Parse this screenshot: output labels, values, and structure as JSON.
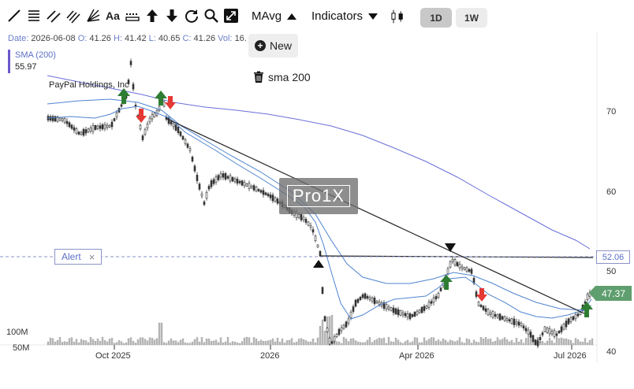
{
  "toolbar": {
    "text_tool_label": "Aa",
    "ma_label": "MAvg",
    "indicators_label": "Indicators",
    "period_1d": "1D",
    "period_1w": "1W"
  },
  "info": {
    "date_key": "Date:",
    "date": "2026-06-08",
    "o_key": "O:",
    "o": "41.26",
    "h_key": "H:",
    "h": "41.42",
    "l_key": "L:",
    "l": "40.65",
    "c_key": "C:",
    "c": "41.26",
    "vol_key": "Vol:",
    "vol": "16."
  },
  "sma": {
    "title": "SMA (200)",
    "value": "55.97"
  },
  "actions": {
    "new_label": "New",
    "delete_item_label": "sma 200"
  },
  "company": "PayPal Holdings, Inc",
  "alert": {
    "label": "Alert",
    "close": "×",
    "price": "52.06"
  },
  "last_price": "47.37",
  "watermark": "Pro1X",
  "y_axis": {
    "ticks": [
      "70",
      "60",
      "50",
      "40"
    ]
  },
  "volume_axis": {
    "ticks": [
      "100M",
      "50M"
    ]
  },
  "x_axis": {
    "ticks": [
      "Oct 2025",
      "2026",
      "Apr 2026",
      "Jul 2026"
    ]
  },
  "colors": {
    "up_arrow": "#2e7d32",
    "down_arrow": "#e53935",
    "sma_line": "#6a6fd8",
    "ema_line": "#5b8fd6",
    "candle": "#333333",
    "alert_line": "#8a92c8"
  },
  "chart_data": {
    "type": "candlestick",
    "y_range": [
      38,
      78
    ],
    "series": [
      {
        "name": "PayPal Holdings, Inc",
        "kind": "price"
      },
      {
        "name": "SMA (200)",
        "kind": "line"
      }
    ],
    "horizontal_line": 52.06,
    "last_price": 47.37
  }
}
